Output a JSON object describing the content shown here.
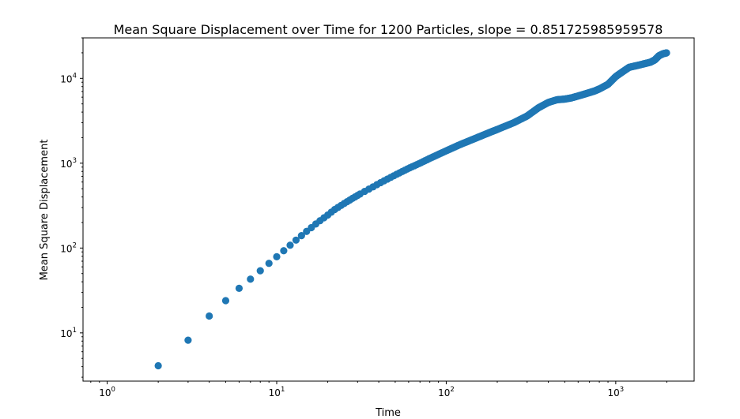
{
  "chart_data": {
    "type": "scatter",
    "title": "Mean Square Displacement over Time for 1200 Particles, slope = 0.851725985959578",
    "xlabel": "Time",
    "ylabel": "Mean Square Displacement",
    "xscale": "log",
    "yscale": "log",
    "xlim": [
      0.72,
      2900
    ],
    "ylim": [
      2.7,
      30000
    ],
    "grid": false,
    "legend": "none",
    "marker_color": "#1f77b4",
    "x_major_ticks": [
      {
        "base": "10",
        "exp": "0"
      },
      {
        "base": "10",
        "exp": "1"
      },
      {
        "base": "10",
        "exp": "2"
      },
      {
        "base": "10",
        "exp": "3"
      }
    ],
    "y_major_ticks": [
      {
        "base": "10",
        "exp": "1"
      },
      {
        "base": "10",
        "exp": "2"
      },
      {
        "base": "10",
        "exp": "3"
      },
      {
        "base": "10",
        "exp": "4"
      }
    ],
    "points_sampled": {
      "x": [
        2,
        3,
        4,
        5,
        6,
        7,
        8,
        9,
        10,
        11,
        12,
        13,
        14,
        15,
        16,
        17,
        18,
        20,
        22,
        25,
        28,
        32,
        36,
        40,
        45,
        50,
        60,
        70,
        80,
        100,
        120,
        150,
        180,
        200,
        250,
        300,
        350,
        400,
        450,
        500,
        550,
        600,
        650,
        700,
        750,
        800,
        900,
        1000,
        1100,
        1200,
        1300,
        1400,
        1500,
        1600,
        1700,
        1800,
        1900,
        2000
      ],
      "y": [
        4.1,
        8.2,
        15.8,
        24,
        33.5,
        43,
        54,
        66,
        79,
        93,
        108,
        124,
        140,
        157,
        174,
        192,
        210,
        245,
        285,
        335,
        385,
        450,
        510,
        575,
        650,
        725,
        870,
        1000,
        1140,
        1400,
        1650,
        1980,
        2300,
        2500,
        3000,
        3600,
        4500,
        5200,
        5600,
        5700,
        5900,
        6200,
        6500,
        6800,
        7100,
        7500,
        8500,
        10500,
        12000,
        13500,
        14000,
        14500,
        15000,
        15500,
        16500,
        18500,
        19500,
        20000
      ]
    }
  }
}
